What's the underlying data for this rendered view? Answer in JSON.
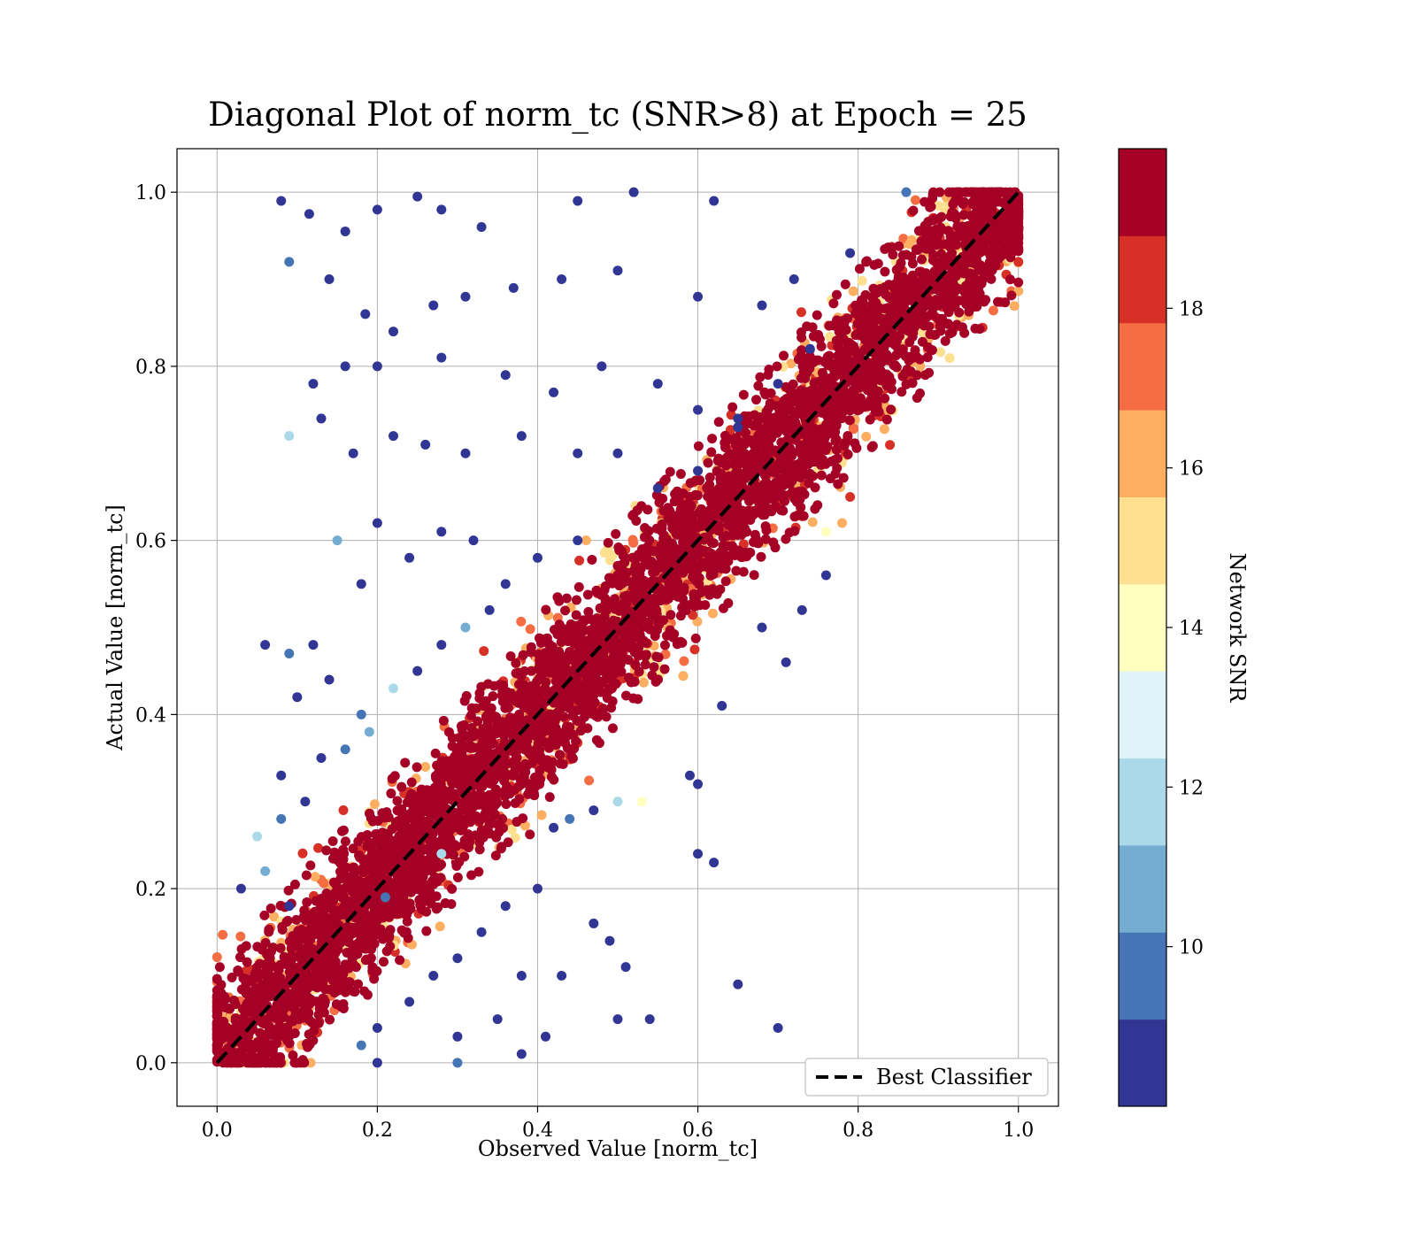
{
  "chart_data": {
    "type": "scatter",
    "title": "Diagonal Plot of norm_tc (SNR>8) at Epoch = 25",
    "xlabel": "Observed Value [norm_tc]",
    "ylabel": "Actual Value [norm_tc]",
    "xlim": [
      -0.05,
      1.05
    ],
    "ylim": [
      -0.05,
      1.05
    ],
    "x_ticks": [
      "0.0",
      "0.2",
      "0.4",
      "0.6",
      "0.8",
      "1.0"
    ],
    "y_ticks": [
      "0.0",
      "0.2",
      "0.4",
      "0.6",
      "0.8",
      "1.0"
    ],
    "grid": true,
    "legend": {
      "label": "Best Classifier",
      "placement": "lower-right"
    },
    "reference_line": {
      "label": "Best Classifier",
      "x": [
        0,
        1
      ],
      "y": [
        0,
        1
      ],
      "style": "dashed",
      "color": "#000000"
    },
    "colorbar": {
      "label": "Network SNR",
      "range": [
        8,
        20
      ],
      "ticks": [
        "10",
        "12",
        "14",
        "16",
        "18"
      ],
      "colors": [
        "#313695",
        "#4575b4",
        "#74add1",
        "#abd9e9",
        "#e0f3f8",
        "#ffffbf",
        "#fee090",
        "#fdae61",
        "#f46d43",
        "#d73027",
        "#a50026"
      ]
    },
    "description_of_density": "dense band of high-SNR points along y=x; sparse low-SNR points scattered mostly above the diagonal",
    "points": [
      [
        0.08,
        0.99,
        9
      ],
      [
        0.115,
        0.975,
        9
      ],
      [
        0.09,
        0.92,
        10
      ],
      [
        0.16,
        0.955,
        9
      ],
      [
        0.2,
        0.98,
        9
      ],
      [
        0.25,
        0.995,
        9
      ],
      [
        0.28,
        0.98,
        9
      ],
      [
        0.33,
        0.96,
        9
      ],
      [
        0.45,
        0.99,
        9
      ],
      [
        0.52,
        1.0,
        9
      ],
      [
        0.62,
        0.99,
        9
      ],
      [
        0.86,
        1.0,
        10
      ],
      [
        0.14,
        0.9,
        9
      ],
      [
        0.185,
        0.86,
        9
      ],
      [
        0.22,
        0.84,
        9
      ],
      [
        0.27,
        0.87,
        9
      ],
      [
        0.31,
        0.88,
        9
      ],
      [
        0.37,
        0.89,
        9
      ],
      [
        0.43,
        0.9,
        9
      ],
      [
        0.5,
        0.91,
        9
      ],
      [
        0.6,
        0.88,
        9
      ],
      [
        0.68,
        0.87,
        9
      ],
      [
        0.72,
        0.9,
        9
      ],
      [
        0.79,
        0.93,
        9
      ],
      [
        0.12,
        0.78,
        9
      ],
      [
        0.16,
        0.8,
        9
      ],
      [
        0.2,
        0.8,
        9
      ],
      [
        0.28,
        0.81,
        9
      ],
      [
        0.36,
        0.79,
        9
      ],
      [
        0.42,
        0.77,
        9
      ],
      [
        0.48,
        0.8,
        9
      ],
      [
        0.55,
        0.78,
        9
      ],
      [
        0.6,
        0.75,
        9
      ],
      [
        0.65,
        0.74,
        9
      ],
      [
        0.7,
        0.78,
        9
      ],
      [
        0.74,
        0.82,
        9
      ],
      [
        0.09,
        0.72,
        12
      ],
      [
        0.13,
        0.74,
        9
      ],
      [
        0.17,
        0.7,
        9
      ],
      [
        0.22,
        0.72,
        9
      ],
      [
        0.26,
        0.71,
        9
      ],
      [
        0.31,
        0.7,
        9
      ],
      [
        0.38,
        0.72,
        9
      ],
      [
        0.45,
        0.7,
        9
      ],
      [
        0.5,
        0.7,
        9
      ],
      [
        0.55,
        0.66,
        9
      ],
      [
        0.6,
        0.68,
        9
      ],
      [
        0.65,
        0.73,
        9
      ],
      [
        0.06,
        0.48,
        9
      ],
      [
        0.09,
        0.47,
        10
      ],
      [
        0.12,
        0.48,
        9
      ],
      [
        0.15,
        0.6,
        11
      ],
      [
        0.18,
        0.55,
        9
      ],
      [
        0.2,
        0.62,
        9
      ],
      [
        0.24,
        0.58,
        9
      ],
      [
        0.28,
        0.61,
        9
      ],
      [
        0.32,
        0.6,
        9
      ],
      [
        0.36,
        0.55,
        9
      ],
      [
        0.4,
        0.58,
        9
      ],
      [
        0.45,
        0.6,
        9
      ],
      [
        0.1,
        0.42,
        9
      ],
      [
        0.14,
        0.44,
        9
      ],
      [
        0.18,
        0.4,
        10
      ],
      [
        0.22,
        0.43,
        12
      ],
      [
        0.25,
        0.45,
        9
      ],
      [
        0.28,
        0.48,
        9
      ],
      [
        0.31,
        0.5,
        11
      ],
      [
        0.34,
        0.52,
        9
      ],
      [
        0.13,
        0.35,
        9
      ],
      [
        0.16,
        0.36,
        10
      ],
      [
        0.19,
        0.38,
        11
      ],
      [
        0.08,
        0.33,
        9
      ],
      [
        0.05,
        0.26,
        12
      ],
      [
        0.08,
        0.28,
        10
      ],
      [
        0.11,
        0.3,
        9
      ],
      [
        0.03,
        0.2,
        9
      ],
      [
        0.06,
        0.22,
        11
      ],
      [
        0.09,
        0.18,
        9
      ],
      [
        0.47,
        0.29,
        9
      ],
      [
        0.5,
        0.3,
        12
      ],
      [
        0.53,
        0.3,
        14
      ],
      [
        0.44,
        0.28,
        10
      ],
      [
        0.42,
        0.27,
        9
      ],
      [
        0.4,
        0.2,
        9
      ],
      [
        0.36,
        0.18,
        9
      ],
      [
        0.33,
        0.15,
        9
      ],
      [
        0.3,
        0.12,
        9
      ],
      [
        0.27,
        0.1,
        9
      ],
      [
        0.24,
        0.07,
        9
      ],
      [
        0.2,
        0.04,
        9
      ],
      [
        0.47,
        0.16,
        9
      ],
      [
        0.49,
        0.14,
        9
      ],
      [
        0.51,
        0.11,
        9
      ],
      [
        0.5,
        0.05,
        9
      ],
      [
        0.43,
        0.1,
        9
      ],
      [
        0.41,
        0.03,
        9
      ],
      [
        0.3,
        0.03,
        9
      ],
      [
        0.35,
        0.05,
        9
      ],
      [
        0.38,
        0.01,
        9
      ],
      [
        0.3,
        0.0,
        10
      ],
      [
        0.18,
        0.02,
        10
      ],
      [
        0.2,
        0.0,
        9
      ],
      [
        0.6,
        0.24,
        9
      ],
      [
        0.62,
        0.23,
        9
      ],
      [
        0.59,
        0.33,
        9
      ],
      [
        0.6,
        0.32,
        9
      ],
      [
        0.63,
        0.41,
        9
      ],
      [
        0.68,
        0.5,
        9
      ],
      [
        0.71,
        0.46,
        9
      ],
      [
        0.73,
        0.52,
        9
      ],
      [
        0.76,
        0.56,
        9
      ],
      [
        0.76,
        0.61,
        14
      ],
      [
        0.78,
        0.62,
        16
      ],
      [
        0.79,
        0.65,
        18
      ],
      [
        0.65,
        0.09,
        9
      ],
      [
        0.7,
        0.04,
        9
      ],
      [
        0.54,
        0.05,
        9
      ],
      [
        0.38,
        0.1,
        9
      ],
      [
        0.21,
        0.19,
        10
      ],
      [
        0.28,
        0.24,
        12
      ]
    ]
  }
}
